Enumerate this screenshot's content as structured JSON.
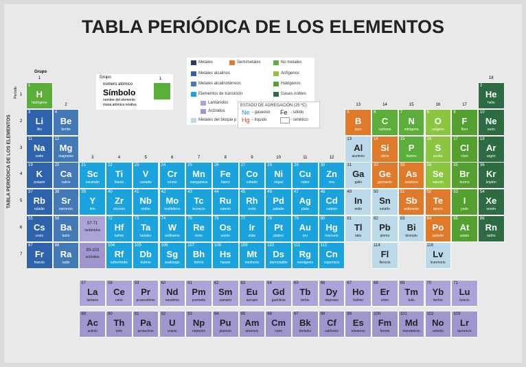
{
  "header": {
    "title": "TABLA PERIÓDICA  DE LOS ELEMENTOS",
    "side_title": "TABLA PERIÓDICA DE LOS ELEMENTOS"
  },
  "legend": [
    {
      "label": "Metales",
      "color": "#2b3a67"
    },
    {
      "label": "Semimetales",
      "color": "#e07a2b"
    },
    {
      "label": "No metales",
      "color": "#5cae3a"
    },
    {
      "label": "Metales alcalinos",
      "color": "#2e62ad"
    },
    {
      "label": "Metales alcalinotérreos",
      "color": "#4479b8"
    },
    {
      "label": "Elementos de transición",
      "color": "#1ba3dd"
    },
    {
      "label": "Lantánidos",
      "color": "#aaa4d8"
    },
    {
      "label": "Actínidos",
      "color": "#a095cd"
    },
    {
      "label": "Metales del bloque p",
      "color": "#bcd9ea"
    },
    {
      "label": "Anfígenos",
      "color": "#8cc640"
    },
    {
      "label": "Halógenos",
      "color": "#53a02f"
    },
    {
      "label": "Gases nobles",
      "color": "#2d6b42"
    }
  ],
  "key": {
    "group_label": "Grupo",
    "group": 1,
    "number_label": "número atómico",
    "symbol_label": "Símbolo",
    "name_label": "nombre del elemento",
    "mass_label": "masa atómica relativa"
  },
  "state": {
    "title": "ESTADO DE AGREGACIÓN (25 ºC)",
    "items": [
      {
        "symbol": "Ne",
        "label": "- gaseoso",
        "color": "#1a8fd6"
      },
      {
        "symbol": "Fe",
        "label": "- sólido",
        "color": "#222222"
      },
      {
        "symbol": "Hg",
        "label": "- líquido",
        "color": "#d83a2a"
      },
      {
        "label": "- sintético",
        "color": "#999999"
      }
    ]
  },
  "table": {
    "group_heading": "Grupo",
    "period_heading": "Período",
    "groups": [
      1,
      2,
      3,
      4,
      5,
      6,
      7,
      8,
      9,
      10,
      11,
      12,
      13,
      14,
      15,
      16,
      17,
      18
    ],
    "periods": [
      1,
      2,
      3,
      4,
      5,
      6,
      7
    ],
    "rows": [
      [
        [
          1,
          "H",
          "hidrógeno",
          2
        ],
        null,
        null,
        null,
        null,
        null,
        null,
        null,
        null,
        null,
        null,
        null,
        null,
        null,
        null,
        null,
        null,
        [
          2,
          "He",
          "helio",
          11
        ]
      ],
      [
        [
          3,
          "Li",
          "litio",
          3
        ],
        [
          4,
          "Be",
          "berilio",
          4
        ],
        null,
        null,
        null,
        null,
        null,
        null,
        null,
        null,
        null,
        null,
        [
          5,
          "B",
          "boro",
          1
        ],
        [
          6,
          "C",
          "carbono",
          2
        ],
        [
          7,
          "N",
          "nitrógeno",
          2
        ],
        [
          8,
          "O",
          "oxígeno",
          9
        ],
        [
          9,
          "F",
          "flúor",
          10
        ],
        [
          10,
          "Ne",
          "neón",
          11
        ]
      ],
      [
        [
          11,
          "Na",
          "sodio",
          3
        ],
        [
          12,
          "Mg",
          "magnesio",
          4
        ],
        null,
        null,
        null,
        null,
        null,
        null,
        null,
        null,
        null,
        null,
        [
          13,
          "Al",
          "aluminio",
          8
        ],
        [
          14,
          "Si",
          "silicio",
          1
        ],
        [
          15,
          "P",
          "fósforo",
          2
        ],
        [
          16,
          "S",
          "azufre",
          9
        ],
        [
          17,
          "Cl",
          "cloro",
          10
        ],
        [
          18,
          "Ar",
          "argón",
          11
        ]
      ],
      [
        [
          19,
          "K",
          "potasio",
          3
        ],
        [
          20,
          "Ca",
          "calcio",
          4
        ],
        [
          21,
          "Sc",
          "escandio",
          5
        ],
        [
          22,
          "Ti",
          "titanio",
          5
        ],
        [
          23,
          "V",
          "vanadio",
          5
        ],
        [
          24,
          "Cr",
          "cromo",
          5
        ],
        [
          25,
          "Mn",
          "manganeso",
          5
        ],
        [
          26,
          "Fe",
          "hierro",
          5
        ],
        [
          27,
          "Co",
          "cobalto",
          5
        ],
        [
          28,
          "Ni",
          "níquel",
          5
        ],
        [
          29,
          "Cu",
          "cobre",
          5
        ],
        [
          30,
          "Zn",
          "cinc",
          5
        ],
        [
          31,
          "Ga",
          "galio",
          8
        ],
        [
          32,
          "Ge",
          "germanio",
          1
        ],
        [
          33,
          "As",
          "arsénico",
          1
        ],
        [
          34,
          "Se",
          "selenio",
          9
        ],
        [
          35,
          "Br",
          "bromo",
          10
        ],
        [
          36,
          "Kr",
          "kriptón",
          11
        ]
      ],
      [
        [
          37,
          "Rb",
          "rubidio",
          3
        ],
        [
          38,
          "Sr",
          "estroncio",
          4
        ],
        [
          39,
          "Y",
          "itrio",
          5
        ],
        [
          40,
          "Zr",
          "circonio",
          5
        ],
        [
          41,
          "Nb",
          "niobio",
          5
        ],
        [
          42,
          "Mo",
          "molibdeno",
          5
        ],
        [
          43,
          "Tc",
          "tecnecio",
          5
        ],
        [
          44,
          "Ru",
          "rutenio",
          5
        ],
        [
          45,
          "Rh",
          "rodio",
          5
        ],
        [
          46,
          "Pd",
          "paladio",
          5
        ],
        [
          47,
          "Ag",
          "plata",
          5
        ],
        [
          48,
          "Cd",
          "cadmio",
          5
        ],
        [
          49,
          "In",
          "indio",
          8
        ],
        [
          50,
          "Sn",
          "estaño",
          8
        ],
        [
          51,
          "Sb",
          "antimonio",
          1
        ],
        [
          52,
          "Te",
          "telurio",
          1
        ],
        [
          53,
          "I",
          "yodo",
          10
        ],
        [
          54,
          "Xe",
          "xenón",
          11
        ]
      ],
      [
        [
          55,
          "Cs",
          "cesio",
          3
        ],
        [
          56,
          "Ba",
          "bario",
          4
        ],
        null,
        [
          72,
          "Hf",
          "hafnio",
          5
        ],
        [
          73,
          "Ta",
          "tantalio",
          5
        ],
        [
          74,
          "W",
          "wolframio",
          5
        ],
        [
          75,
          "Re",
          "renio",
          5
        ],
        [
          76,
          "Os",
          "osmio",
          5
        ],
        [
          77,
          "Ir",
          "iridio",
          5
        ],
        [
          78,
          "Pt",
          "platino",
          5
        ],
        [
          79,
          "Au",
          "oro",
          5
        ],
        [
          80,
          "Hg",
          "mercurio",
          5
        ],
        [
          81,
          "Tl",
          "talio",
          8
        ],
        [
          82,
          "Pb",
          "plomo",
          8
        ],
        [
          83,
          "Bi",
          "bismuto",
          8
        ],
        [
          84,
          "Po",
          "polonio",
          1
        ],
        [
          85,
          "At",
          "astato",
          10
        ],
        [
          86,
          "Rn",
          "radón",
          11
        ]
      ],
      [
        [
          87,
          "Fr",
          "francio",
          3
        ],
        [
          88,
          "Ra",
          "radio",
          4
        ],
        null,
        [
          104,
          "Rf",
          "rutherfordio",
          5
        ],
        [
          105,
          "Db",
          "dubnio",
          5
        ],
        [
          106,
          "Sg",
          "seaborgio",
          5
        ],
        [
          107,
          "Bh",
          "bohrio",
          5
        ],
        [
          108,
          "Hs",
          "hassio",
          5
        ],
        [
          109,
          "Mt",
          "meitnerio",
          5
        ],
        [
          110,
          "Ds",
          "darmstadtio",
          5
        ],
        [
          111,
          "Rg",
          "roentgenio",
          5
        ],
        [
          112,
          "Cn",
          "copernicio",
          5
        ],
        null,
        [
          114,
          "Fl",
          "flerovio",
          8
        ],
        null,
        [
          116,
          "Lv",
          "livermorio",
          8
        ],
        null,
        null
      ]
    ],
    "placeholders": [
      {
        "range": "57-71",
        "label": "lantánidos",
        "cat": 6
      },
      {
        "range": "89-103",
        "label": "actínidos",
        "cat": 7
      }
    ],
    "lanthanides": [
      [
        57,
        "La",
        "lantano",
        6
      ],
      [
        58,
        "Ce",
        "cerio",
        6
      ],
      [
        59,
        "Pr",
        "praseodimio",
        6
      ],
      [
        60,
        "Nd",
        "neodimio",
        6
      ],
      [
        61,
        "Pm",
        "prometio",
        6
      ],
      [
        62,
        "Sm",
        "samario",
        6
      ],
      [
        63,
        "Eu",
        "europio",
        6
      ],
      [
        64,
        "Gd",
        "gadolinio",
        6
      ],
      [
        65,
        "Tb",
        "terbio",
        6
      ],
      [
        66,
        "Dy",
        "disprosio",
        6
      ],
      [
        67,
        "Ho",
        "holmio",
        6
      ],
      [
        68,
        "Er",
        "erbio",
        6
      ],
      [
        69,
        "Tm",
        "tulio",
        6
      ],
      [
        70,
        "Yb",
        "iterbio",
        6
      ],
      [
        71,
        "Lu",
        "lutecio",
        6
      ]
    ],
    "actinides": [
      [
        89,
        "Ac",
        "actinio",
        7
      ],
      [
        90,
        "Th",
        "torio",
        7
      ],
      [
        91,
        "Pa",
        "protactinio",
        7
      ],
      [
        92,
        "U",
        "uranio",
        7
      ],
      [
        93,
        "Np",
        "neptunio",
        7
      ],
      [
        94,
        "Pu",
        "plutonio",
        7
      ],
      [
        95,
        "Am",
        "americio",
        7
      ],
      [
        96,
        "Cm",
        "curio",
        7
      ],
      [
        97,
        "Bk",
        "berkelio",
        7
      ],
      [
        98,
        "Cf",
        "californio",
        7
      ],
      [
        99,
        "Es",
        "einstenio",
        7
      ],
      [
        100,
        "Fm",
        "fermio",
        7
      ],
      [
        101,
        "Md",
        "mendelevio",
        7
      ],
      [
        102,
        "No",
        "nobelio",
        7
      ],
      [
        103,
        "Lr",
        "laurencio",
        7
      ]
    ]
  }
}
